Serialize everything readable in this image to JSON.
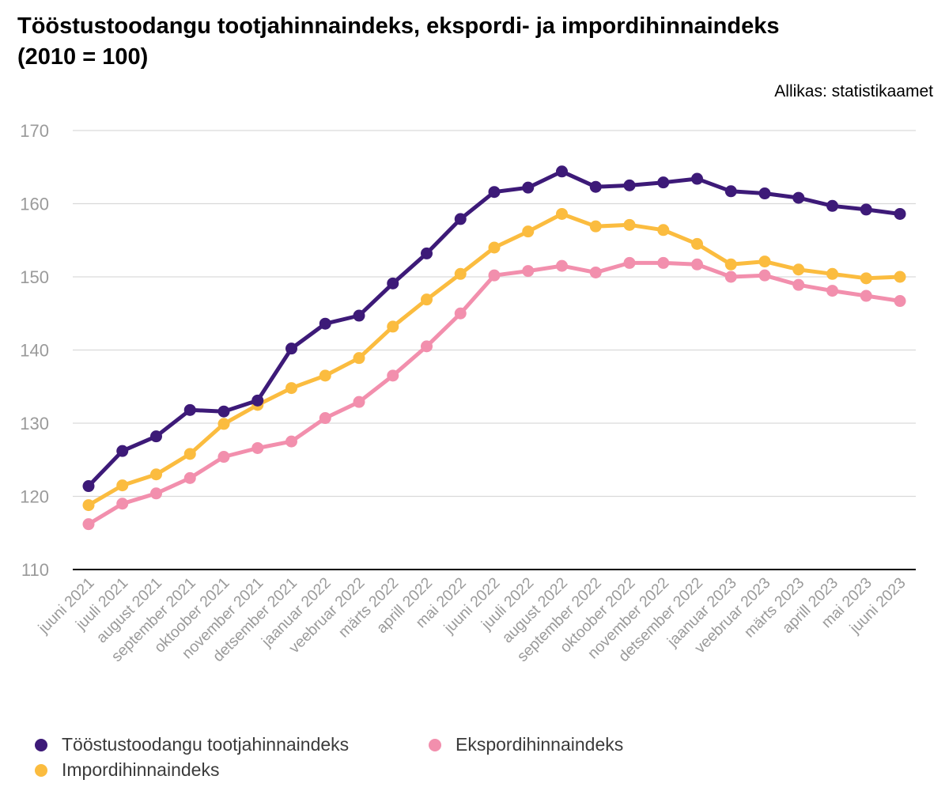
{
  "title_line1": "Tööstustoodangu tootjahinnaindeks, ekspordi- ja impordihinnaindeks",
  "title_line2": "(2010 = 100)",
  "source": "Allikas: statistikaamet",
  "chart_data": {
    "type": "line",
    "title": "Tööstustoodangu tootjahinnaindeks, ekspordi- ja impordihinnaindeks (2010 = 100)",
    "categories": [
      "juuni 2021",
      "juuli 2021",
      "august 2021",
      "september 2021",
      "oktoober 2021",
      "november 2021",
      "detsember 2021",
      "jaanuar 2022",
      "veebruar 2022",
      "märts 2022",
      "aprill 2022",
      "mai 2022",
      "juuni 2022",
      "juuli 2022",
      "august 2022",
      "september 2022",
      "oktoober 2022",
      "november 2022",
      "detsember 2022",
      "jaanuar 2023",
      "veebruar 2023",
      "märts 2023",
      "aprill 2023",
      "mai 2023",
      "juuni 2023"
    ],
    "y_ticks": [
      110,
      120,
      130,
      140,
      150,
      160,
      170
    ],
    "ylim": [
      110,
      170
    ],
    "grid": true,
    "legend_position": "bottom",
    "series": [
      {
        "name": "Tööstustoodangu tootjahinnaindeks",
        "color": "#3d1a78",
        "values": [
          121.4,
          126.2,
          128.2,
          131.8,
          131.6,
          133.1,
          140.2,
          143.6,
          144.7,
          149.1,
          153.2,
          157.9,
          161.6,
          162.2,
          164.4,
          162.3,
          162.5,
          162.9,
          163.4,
          161.7,
          161.4,
          160.8,
          159.7,
          159.2,
          158.6
        ]
      },
      {
        "name": "Impordihinnaindeks",
        "color": "#fbbc3f",
        "values": [
          118.8,
          121.5,
          123.0,
          125.8,
          129.9,
          132.5,
          134.8,
          136.5,
          138.9,
          143.2,
          146.9,
          150.4,
          154.0,
          156.2,
          158.6,
          156.9,
          157.1,
          156.4,
          154.5,
          151.7,
          152.1,
          151.0,
          150.4,
          149.8,
          150.0
        ]
      },
      {
        "name": "Ekspordihinnaindeks",
        "color": "#f28fad",
        "values": [
          116.2,
          119.0,
          120.4,
          122.5,
          125.4,
          126.6,
          127.5,
          130.7,
          132.9,
          136.5,
          140.5,
          145.0,
          150.2,
          150.8,
          151.5,
          150.6,
          151.9,
          151.9,
          151.7,
          150.0,
          150.2,
          148.9,
          148.1,
          147.4,
          146.7
        ]
      }
    ]
  },
  "legend": {
    "items": [
      {
        "label": "Tööstustoodangu tootjahinnaindeks",
        "color": "#3d1a78"
      },
      {
        "label": "Ekspordihinnaindeks",
        "color": "#f28fad"
      },
      {
        "label": "Impordihinnaindeks",
        "color": "#fbbc3f"
      }
    ]
  }
}
